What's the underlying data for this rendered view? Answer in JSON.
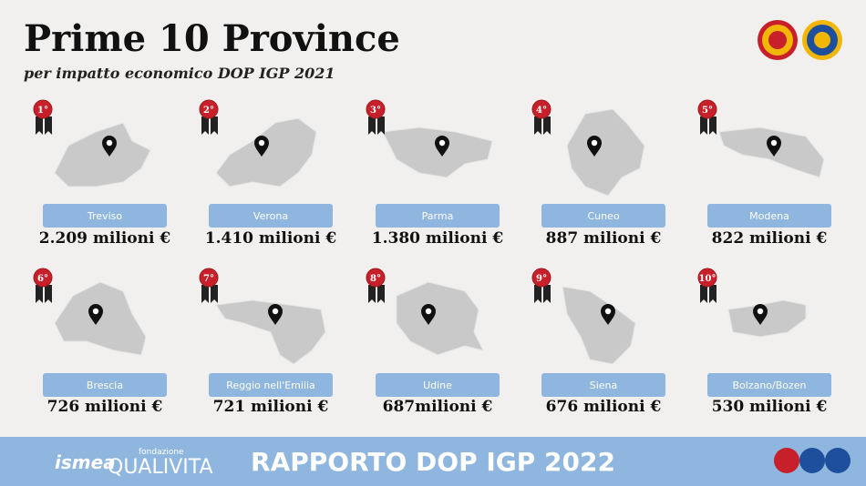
{
  "header": {
    "title": "Prime 10 Province",
    "subtitle": "per impatto economico DOP IGP 2021"
  },
  "provinces": [
    {
      "rank": "1°",
      "name": "Treviso",
      "value": "2.209 milioni €"
    },
    {
      "rank": "2°",
      "name": "Verona",
      "value": "1.410 milioni €"
    },
    {
      "rank": "3°",
      "name": "Parma",
      "value": "1.380 milioni €"
    },
    {
      "rank": "4°",
      "name": "Cuneo",
      "value": "887 milioni €"
    },
    {
      "rank": "5°",
      "name": "Modena",
      "value": "822 milioni €"
    },
    {
      "rank": "6°",
      "name": "Brescia",
      "value": "726 milioni €"
    },
    {
      "rank": "7°",
      "name": "Reggio nell'Emilia",
      "value": "721 milioni €"
    },
    {
      "rank": "8°",
      "name": "Udine",
      "value": "687milioni €"
    },
    {
      "rank": "9°",
      "name": "Siena",
      "value": "676 milioni €"
    },
    {
      "rank": "10°",
      "name": "Bolzano/Bozen",
      "value": "530 milioni €"
    }
  ],
  "footer": {
    "title": "RAPPORTO DOP IGP 2022",
    "logo1": "ismea",
    "logo2_small": "fondazione",
    "logo2": "QUALIVITA"
  }
}
